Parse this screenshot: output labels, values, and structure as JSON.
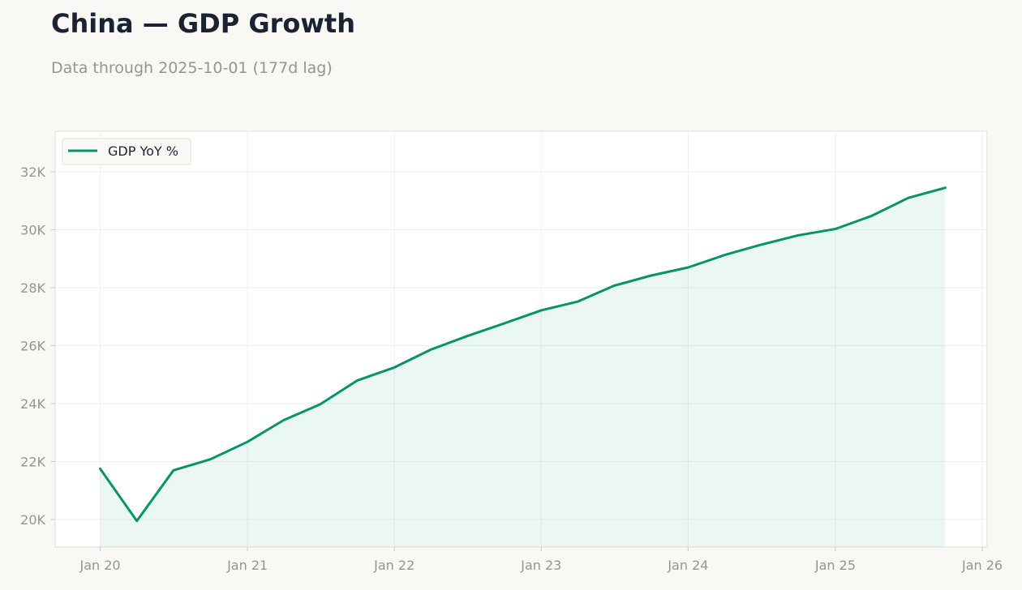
{
  "header": {
    "title": "China — GDP Growth",
    "subtitle": "Data through 2025-10-01 (177d lag)"
  },
  "colors": {
    "line": "#069466",
    "fill": "#069466",
    "grid": "#efeeea",
    "frame": "#dedcd3",
    "background": "#f9f8f5",
    "plot_background": "#ffffff"
  },
  "chart_data": {
    "type": "area",
    "title": "China — GDP Growth",
    "subtitle": "Data through 2025-10-01 (177d lag)",
    "xlabel": "",
    "ylabel": "",
    "x": [
      "2020-01-01",
      "2020-04-01",
      "2020-07-01",
      "2020-10-01",
      "2021-01-01",
      "2021-04-01",
      "2021-07-01",
      "2021-10-01",
      "2022-01-01",
      "2022-04-01",
      "2022-07-01",
      "2022-10-01",
      "2023-01-01",
      "2023-04-01",
      "2023-07-01",
      "2023-10-01",
      "2024-01-01",
      "2024-04-01",
      "2024-07-01",
      "2024-10-01",
      "2025-01-01",
      "2025-04-01",
      "2025-07-01",
      "2025-10-01"
    ],
    "series": [
      {
        "name": "GDP YoY %",
        "values": [
          21750,
          19950,
          21700,
          22080,
          22680,
          23430,
          23980,
          24800,
          25250,
          25860,
          26330,
          26770,
          27220,
          27520,
          28070,
          28420,
          28700,
          29130,
          29490,
          29810,
          30030,
          30480,
          31100,
          31450
        ]
      }
    ],
    "x_ticks": [
      "Jan 20",
      "Jan 21",
      "Jan 22",
      "Jan 23",
      "Jan 24",
      "Jan 25",
      "Jan 26"
    ],
    "x_tick_dates": [
      "2020-01-01",
      "2021-01-01",
      "2022-01-01",
      "2023-01-01",
      "2024-01-01",
      "2025-01-01",
      "2026-01-01"
    ],
    "y_ticks": [
      20000,
      22000,
      24000,
      26000,
      28000,
      30000,
      32000
    ],
    "y_tick_labels": [
      "20K",
      "22K",
      "24K",
      "26K",
      "28K",
      "30K",
      "32K"
    ],
    "xlim": [
      "2019-09-11",
      "2026-01-13"
    ],
    "ylim": [
      19050,
      33400
    ],
    "grid": true,
    "legend": "top-left"
  }
}
